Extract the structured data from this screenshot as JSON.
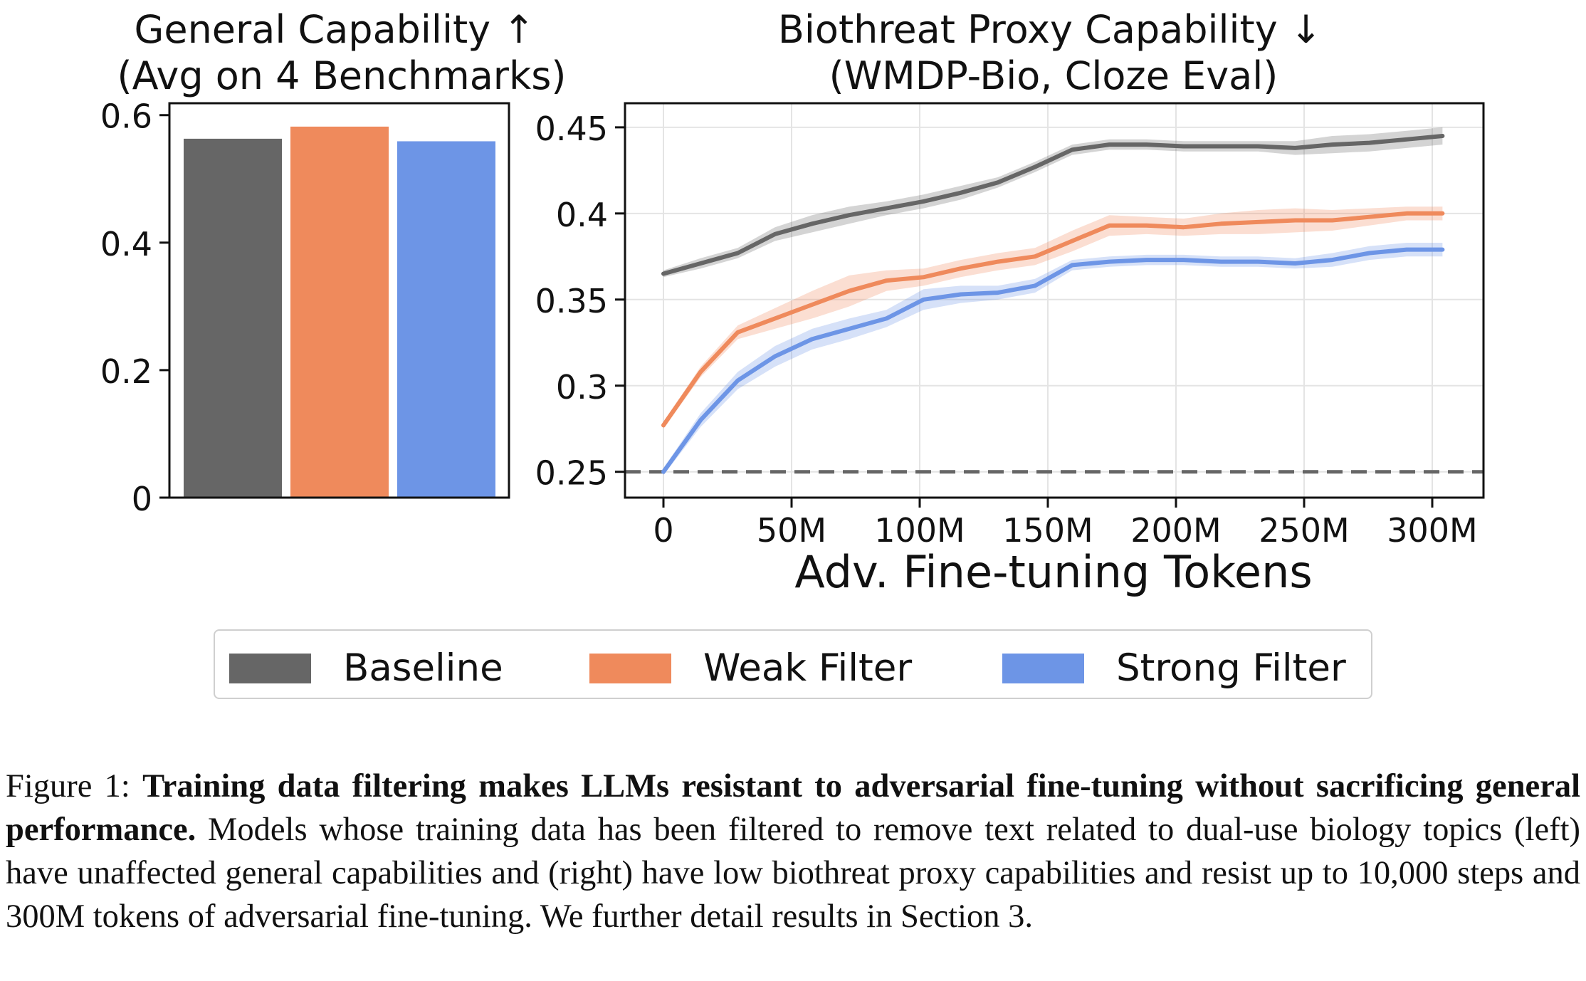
{
  "chart_data": [
    {
      "type": "bar",
      "title": "General Capability ↑",
      "subtitle": "(Avg on 4 Benchmarks)",
      "categories": [
        "Baseline",
        "Weak Filter",
        "Strong Filter"
      ],
      "values": [
        0.563,
        0.582,
        0.559
      ],
      "colors": [
        "#666666",
        "#ef8a5c",
        "#6d95e6"
      ],
      "ylim": [
        0,
        0.6
      ],
      "yticks": [
        0,
        0.2,
        0.4,
        0.6
      ],
      "ytick_labels": [
        "0",
        "0.2",
        "0.4",
        "0.6"
      ],
      "xlabel": "",
      "ylabel": ""
    },
    {
      "type": "line",
      "title": "Biothreat Proxy Capability ↓",
      "subtitle": "(WMDP-Bio, Cloze Eval)",
      "xlabel": "Adv. Fine-tuning Tokens",
      "ylabel": "",
      "xlim": [
        -15,
        320
      ],
      "ylim": [
        0.235,
        0.464
      ],
      "xticks": [
        0,
        50,
        100,
        150,
        200,
        250,
        300
      ],
      "xtick_labels": [
        "0",
        "50M",
        "100M",
        "150M",
        "200M",
        "250M",
        "300M"
      ],
      "yticks": [
        0.25,
        0.3,
        0.35,
        0.4,
        0.45
      ],
      "ytick_labels": [
        "0.25",
        "0.3",
        "0.35",
        "0.4",
        "0.45"
      ],
      "x": [
        0,
        14.5,
        29,
        43.5,
        58,
        72.5,
        87,
        101.5,
        116,
        130.5,
        145,
        159.5,
        174,
        188.5,
        203,
        217.5,
        232,
        246.5,
        261,
        275.5,
        290,
        304
      ],
      "series": [
        {
          "name": "Baseline",
          "color": "#666666",
          "values": [
            0.365,
            0.371,
            0.377,
            0.388,
            0.394,
            0.399,
            0.403,
            0.407,
            0.412,
            0.418,
            0.427,
            0.437,
            0.44,
            0.44,
            0.439,
            0.439,
            0.439,
            0.438,
            0.44,
            0.441,
            0.443,
            0.445
          ],
          "band": [
            0.002,
            0.003,
            0.003,
            0.004,
            0.005,
            0.005,
            0.004,
            0.004,
            0.004,
            0.003,
            0.003,
            0.003,
            0.003,
            0.003,
            0.003,
            0.003,
            0.003,
            0.004,
            0.005,
            0.005,
            0.005,
            0.005
          ]
        },
        {
          "name": "Weak Filter",
          "color": "#ef8a5c",
          "values": [
            0.277,
            0.308,
            0.331,
            0.339,
            0.347,
            0.355,
            0.361,
            0.363,
            0.368,
            0.372,
            0.375,
            0.384,
            0.393,
            0.393,
            0.392,
            0.394,
            0.395,
            0.396,
            0.396,
            0.398,
            0.4,
            0.4
          ],
          "band": [
            0.002,
            0.003,
            0.004,
            0.006,
            0.008,
            0.009,
            0.006,
            0.005,
            0.005,
            0.005,
            0.005,
            0.006,
            0.006,
            0.005,
            0.005,
            0.006,
            0.007,
            0.007,
            0.006,
            0.005,
            0.004,
            0.004
          ]
        },
        {
          "name": "Strong Filter",
          "color": "#6d95e6",
          "values": [
            0.25,
            0.28,
            0.303,
            0.317,
            0.327,
            0.333,
            0.339,
            0.35,
            0.353,
            0.354,
            0.358,
            0.37,
            0.372,
            0.373,
            0.373,
            0.372,
            0.372,
            0.371,
            0.373,
            0.377,
            0.379,
            0.379
          ],
          "band": [
            0.002,
            0.004,
            0.005,
            0.006,
            0.006,
            0.006,
            0.005,
            0.006,
            0.005,
            0.004,
            0.004,
            0.003,
            0.003,
            0.003,
            0.003,
            0.003,
            0.003,
            0.003,
            0.004,
            0.004,
            0.004,
            0.004
          ]
        }
      ],
      "reference_line": {
        "y": 0.25,
        "style": "dashed",
        "color": "#666666"
      }
    }
  ],
  "legend": {
    "items": [
      {
        "label": "Baseline",
        "color": "#666666"
      },
      {
        "label": "Weak Filter",
        "color": "#ef8a5c"
      },
      {
        "label": "Strong Filter",
        "color": "#6d95e6"
      }
    ]
  },
  "caption": {
    "prefix": "Figure 1: ",
    "bold": "Training data filtering makes LLMs resistant to adversarial fine-tuning without sacrificing general performance.",
    "body": " Models whose training data has been filtered to remove text related to dual-use biology topics (left) have unaffected general capabilities and (right) have low biothreat proxy capabilities and resist up to 10,000 steps and 300M tokens of adversarial fine-tuning. We further detail results in Section 3."
  }
}
